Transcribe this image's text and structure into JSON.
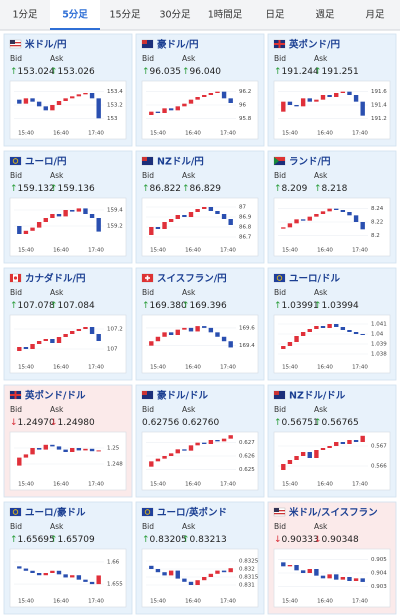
{
  "tabs": [
    "1分足",
    "5分足",
    "15分足",
    "30分足",
    "1時間足",
    "日足",
    "週足",
    "月足"
  ],
  "active_tab": 1,
  "labels": {
    "bid": "Bid",
    "ask": "Ask"
  },
  "xticks": [
    "15:40",
    "16:40",
    "17:40"
  ],
  "up_color": "#e0303a",
  "down_color": "#2a4fb0",
  "cards": [
    {
      "name": "米ドル/円",
      "flag": "us",
      "background": "#e8f2fb",
      "bid_arrow": "↑",
      "bid_arrow_color": "#2a9d3a",
      "bid": "153.024",
      "ask_arrow": "↑",
      "ask_arrow_color": "#2a9d3a",
      "ask": "153.026",
      "ylim": [
        152.9,
        153.5
      ],
      "yticks": [
        153.4,
        153.2,
        153
      ],
      "prices": [
        153.28,
        153.22,
        153.3,
        153.25,
        153.18,
        153.12,
        153.2,
        153.26,
        153.3,
        153.33,
        153.36,
        153.38,
        153.3,
        153.0
      ]
    },
    {
      "name": "豪ドル/円",
      "flag": "au",
      "background": "#e8f2fb",
      "bid_arrow": "↑",
      "bid_arrow_color": "#2a9d3a",
      "bid": "96.035",
      "ask_arrow": "↑",
      "ask_arrow_color": "#2a9d3a",
      "ask": "96.040",
      "ylim": [
        95.7,
        96.3
      ],
      "yticks": [
        96.2,
        96,
        95.8
      ],
      "prices": [
        95.85,
        95.9,
        95.88,
        95.95,
        95.92,
        95.98,
        96.02,
        96.08,
        96.12,
        96.15,
        96.18,
        96.2,
        96.1,
        96.03
      ]
    },
    {
      "name": "英ポンド/円",
      "flag": "uk",
      "background": "#e8f2fb",
      "bid_arrow": "↑",
      "bid_arrow_color": "#2a9d3a",
      "bid": "191.244",
      "ask_arrow": "↑",
      "ask_arrow_color": "#2a9d3a",
      "ask": "191.251",
      "ylim": [
        191.1,
        191.7
      ],
      "yticks": [
        191.6,
        191.4,
        191.2
      ],
      "prices": [
        191.3,
        191.45,
        191.4,
        191.38,
        191.5,
        191.45,
        191.48,
        191.55,
        191.52,
        191.58,
        191.6,
        191.55,
        191.45,
        191.24
      ]
    },
    {
      "name": "ユーロ/円",
      "flag": "eu",
      "background": "#e8f2fb",
      "bid_arrow": "↑",
      "bid_arrow_color": "#2a9d3a",
      "bid": "159.132",
      "ask_arrow": "↑",
      "ask_arrow_color": "#2a9d3a",
      "ask": "159.136",
      "ylim": [
        159.0,
        159.5
      ],
      "yticks": [
        159.4,
        159.2
      ],
      "prices": [
        159.2,
        159.1,
        159.14,
        159.18,
        159.25,
        159.3,
        159.35,
        159.32,
        159.4,
        159.38,
        159.42,
        159.35,
        159.3,
        159.13
      ]
    },
    {
      "name": "NZドル/円",
      "flag": "nz",
      "background": "#e8f2fb",
      "bid_arrow": "↑",
      "bid_arrow_color": "#2a9d3a",
      "bid": "86.822",
      "ask_arrow": "↑",
      "ask_arrow_color": "#2a9d3a",
      "ask": "86.829",
      "ylim": [
        86.65,
        87.05
      ],
      "yticks": [
        87,
        86.9,
        86.8,
        86.7
      ],
      "prices": [
        86.72,
        86.8,
        86.78,
        86.85,
        86.88,
        86.92,
        86.9,
        86.95,
        86.98,
        87.0,
        86.96,
        86.93,
        86.88,
        86.82
      ]
    },
    {
      "name": "ランド/円",
      "flag": "za",
      "background": "#e8f2fb",
      "bid_arrow": "↑",
      "bid_arrow_color": "#2a9d3a",
      "bid": "8.209",
      "ask_arrow": "↑",
      "ask_arrow_color": "#2a9d3a",
      "ask": "8.218",
      "ylim": [
        8.19,
        8.25
      ],
      "yticks": [
        8.24,
        8.22,
        8.2
      ],
      "prices": [
        8.21,
        8.212,
        8.218,
        8.224,
        8.222,
        8.228,
        8.232,
        8.236,
        8.24,
        8.238,
        8.235,
        8.23,
        8.22,
        8.209
      ]
    },
    {
      "name": "カナダドル/円",
      "flag": "ca",
      "background": "#e8f2fb",
      "bid_arrow": "↑",
      "bid_arrow_color": "#2a9d3a",
      "bid": "107.078",
      "ask_arrow": "↑",
      "ask_arrow_color": "#2a9d3a",
      "ask": "107.084",
      "ylim": [
        106.9,
        107.3
      ],
      "yticks": [
        107.2,
        107
      ],
      "prices": [
        106.98,
        107.02,
        107.0,
        107.05,
        107.08,
        107.1,
        107.06,
        107.12,
        107.15,
        107.18,
        107.2,
        107.22,
        107.15,
        107.08
      ]
    },
    {
      "name": "スイスフラン/円",
      "flag": "ch",
      "background": "#e8f2fb",
      "bid_arrow": "↑",
      "bid_arrow_color": "#2a9d3a",
      "bid": "169.380",
      "ask_arrow": "↑",
      "ask_arrow_color": "#2a9d3a",
      "ask": "169.396",
      "ylim": [
        169.25,
        169.7
      ],
      "yticks": [
        169.6,
        169.4
      ],
      "prices": [
        169.4,
        169.45,
        169.5,
        169.55,
        169.52,
        169.58,
        169.6,
        169.56,
        169.62,
        169.6,
        169.55,
        169.5,
        169.45,
        169.38
      ]
    },
    {
      "name": "ユーロ/ドル",
      "flag": "eu",
      "background": "#e8f2fb",
      "bid_arrow": "↑",
      "bid_arrow_color": "#2a9d3a",
      "bid": "1.03991",
      "ask_arrow": "↑",
      "ask_arrow_color": "#2a9d3a",
      "ask": "1.03994",
      "ylim": [
        1.0375,
        1.0415
      ],
      "yticks": [
        1.041,
        1.04,
        1.039,
        1.038
      ],
      "prices": [
        1.0385,
        1.0388,
        1.0392,
        1.0398,
        1.0402,
        1.0405,
        1.0408,
        1.0406,
        1.041,
        1.0407,
        1.0404,
        1.0402,
        1.04,
        1.0399
      ]
    },
    {
      "name": "英ポンド/ドル",
      "flag": "uk",
      "background": "#fbeaea",
      "bid_arrow": "↓",
      "bid_arrow_color": "#d9303a",
      "bid": "1.24970",
      "ask_arrow": "↓",
      "ask_arrow_color": "#d9303a",
      "ask": "1.24980",
      "ylim": [
        1.2465,
        1.2515
      ],
      "yticks": [
        1.25,
        1.248
      ],
      "prices": [
        1.2478,
        1.2488,
        1.2492,
        1.25,
        1.2498,
        1.2504,
        1.2502,
        1.2498,
        1.2495,
        1.25,
        1.2497,
        1.2499,
        1.2496,
        1.2497
      ]
    },
    {
      "name": "豪ドル/ドル",
      "flag": "au",
      "background": "#e8f2fb",
      "bid": "0.62756",
      "ask": "0.62760",
      "ylim": [
        0.6245,
        0.6275
      ],
      "yticks": [
        0.627,
        0.626,
        0.625
      ],
      "prices": [
        0.6252,
        0.6256,
        0.6258,
        0.626,
        0.6262,
        0.6265,
        0.6264,
        0.6268,
        0.627,
        0.6269,
        0.6272,
        0.6271,
        0.6273,
        0.62756
      ]
    },
    {
      "name": "NZドル/ドル",
      "flag": "nz",
      "background": "#e8f2fb",
      "bid_arrow": "↑",
      "bid_arrow_color": "#2a9d3a",
      "bid": "0.56751",
      "ask_arrow": "↑",
      "ask_arrow_color": "#2a9d3a",
      "ask": "0.56765",
      "ylim": [
        0.5655,
        0.5675
      ],
      "yticks": [
        0.567,
        0.566
      ],
      "prices": [
        0.5658,
        0.5661,
        0.5663,
        0.5665,
        0.5667,
        0.5664,
        0.5668,
        0.5669,
        0.567,
        0.5672,
        0.5671,
        0.5673,
        0.5672,
        0.56751
      ]
    },
    {
      "name": "ユーロ/豪ドル",
      "flag": "eu",
      "background": "#e8f2fb",
      "bid_arrow": "↑",
      "bid_arrow_color": "#2a9d3a",
      "bid": "1.65695",
      "ask_arrow": "↑",
      "ask_arrow_color": "#2a9d3a",
      "ask": "1.65709",
      "ylim": [
        1.653,
        1.662
      ],
      "yticks": [
        1.66,
        1.655
      ],
      "prices": [
        1.659,
        1.6585,
        1.658,
        1.6575,
        1.657,
        1.6575,
        1.658,
        1.6572,
        1.6565,
        1.657,
        1.656,
        1.6555,
        1.655,
        1.65695
      ]
    },
    {
      "name": "ユーロ/英ポンド",
      "flag": "eu",
      "background": "#e8f2fb",
      "bid_arrow": "↑",
      "bid_arrow_color": "#2a9d3a",
      "bid": "0.83205",
      "ask_arrow": "↑",
      "ask_arrow_color": "#2a9d3a",
      "ask": "0.83213",
      "ylim": [
        0.8305,
        0.833
      ],
      "yticks": [
        0.8325,
        0.832,
        0.8315,
        0.831
      ],
      "prices": [
        0.8322,
        0.832,
        0.8318,
        0.8316,
        0.8319,
        0.8314,
        0.8312,
        0.831,
        0.8313,
        0.8315,
        0.8317,
        0.8319,
        0.8318,
        0.83205
      ]
    },
    {
      "name": "米ドル/スイスフラン",
      "flag": "us",
      "background": "#fbeaea",
      "bid_arrow": "↓",
      "bid_arrow_color": "#d9303a",
      "bid": "0.90333",
      "ask_arrow": "↓",
      "ask_arrow_color": "#d9303a",
      "ask": "0.90348",
      "ylim": [
        0.9025,
        0.9055
      ],
      "yticks": [
        0.905,
        0.904,
        0.903
      ],
      "prices": [
        0.9048,
        0.9045,
        0.9046,
        0.9042,
        0.904,
        0.9043,
        0.9038,
        0.9036,
        0.9039,
        0.9035,
        0.9037,
        0.9034,
        0.9036,
        0.90333
      ]
    }
  ]
}
